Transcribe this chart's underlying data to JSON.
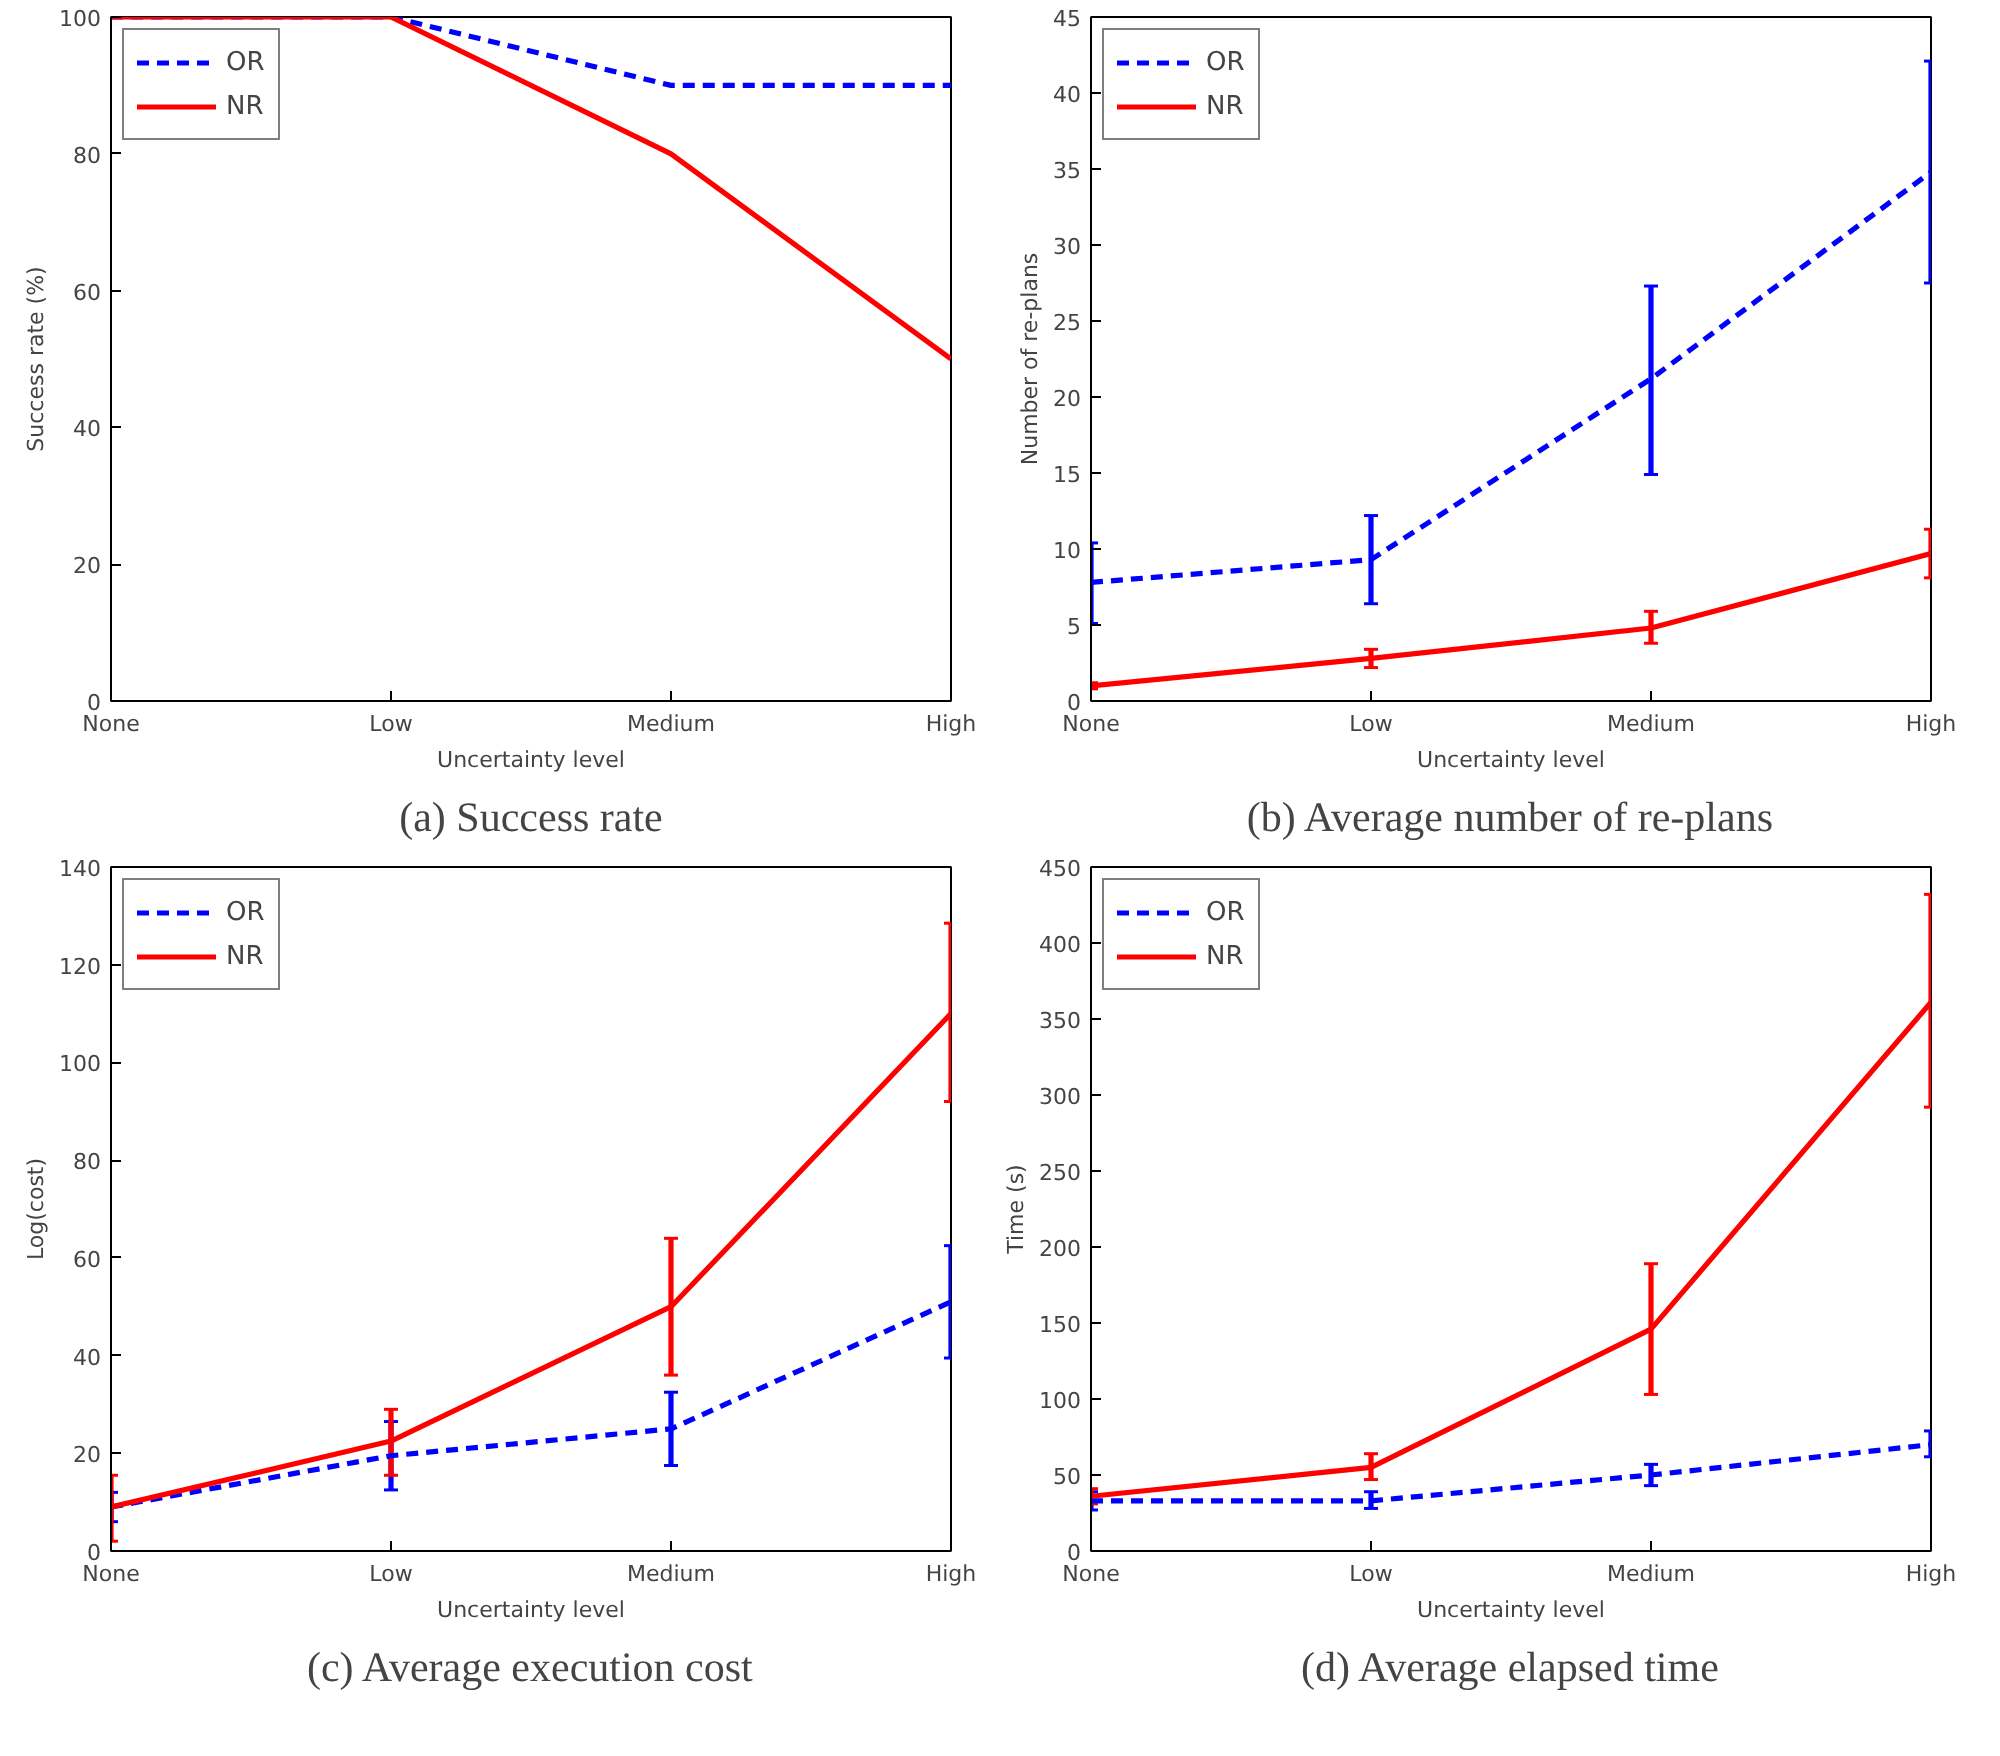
{
  "chart_data": [
    {
      "type": "line",
      "title": "(a) Success rate",
      "xlabel": "Uncertainty level",
      "ylabel": "Success rate (%)",
      "categories": [
        "None",
        "Low",
        "Medium",
        "High"
      ],
      "ylim": [
        0,
        100
      ],
      "yticks": [
        0,
        20,
        40,
        60,
        80,
        100
      ],
      "grid": false,
      "legend": "top left",
      "marker": "none",
      "series": [
        {
          "name": "OR",
          "color": "#0000ff",
          "line_style": "dashed",
          "values": [
            100,
            100,
            90,
            90
          ]
        },
        {
          "name": "NR",
          "color": "#ff0000",
          "line_style": "solid",
          "values": [
            100,
            100,
            80,
            50
          ]
        }
      ]
    },
    {
      "type": "line",
      "title": "(b) Average number of re-plans",
      "xlabel": "Uncertainty level",
      "ylabel": "Number of re-plans",
      "categories": [
        "None",
        "Low",
        "Medium",
        "High"
      ],
      "ylim": [
        0,
        45
      ],
      "yticks": [
        0,
        5,
        10,
        15,
        20,
        25,
        30,
        35,
        40,
        45
      ],
      "grid": false,
      "legend": "top left",
      "marker": "none",
      "series": [
        {
          "name": "OR",
          "color": "#0000ff",
          "line_style": "dashed",
          "values": [
            7.8,
            9.3,
            21.2,
            34.8
          ],
          "errors": [
            [
              5.1,
              10.4
            ],
            [
              6.4,
              12.2
            ],
            [
              14.9,
              27.3
            ],
            [
              27.5,
              42.1
            ]
          ]
        },
        {
          "name": "NR",
          "color": "#ff0000",
          "line_style": "solid",
          "values": [
            1.0,
            2.8,
            4.8,
            9.7
          ],
          "errors": [
            [
              0.8,
              1.2
            ],
            [
              2.2,
              3.4
            ],
            [
              3.8,
              5.9
            ],
            [
              8.1,
              11.3
            ]
          ]
        }
      ]
    },
    {
      "type": "line",
      "title": "(c) Average execution cost",
      "xlabel": "Uncertainty level",
      "ylabel": "Log(cost)",
      "categories": [
        "None",
        "Low",
        "Medium",
        "High"
      ],
      "ylim": [
        0,
        140
      ],
      "yticks": [
        0,
        20,
        40,
        60,
        80,
        100,
        120,
        140
      ],
      "grid": false,
      "legend": "top left",
      "marker": "none",
      "series": [
        {
          "name": "OR",
          "color": "#0000ff",
          "line_style": "dashed",
          "values": [
            9,
            19.5,
            25,
            51
          ],
          "errors": [
            [
              6,
              12
            ],
            [
              12.5,
              26.5
            ],
            [
              17.5,
              32.5
            ],
            [
              39.5,
              62.5
            ]
          ]
        },
        {
          "name": "NR",
          "color": "#ff0000",
          "line_style": "solid",
          "values": [
            9,
            22.5,
            50,
            110
          ],
          "errors": [
            [
              2,
              15.5
            ],
            [
              15.5,
              29
            ],
            [
              36,
              64
            ],
            [
              92,
              128.5
            ]
          ]
        }
      ]
    },
    {
      "type": "line",
      "title": "(d) Average elapsed time",
      "xlabel": "Uncertainty level",
      "ylabel": "Time (s)",
      "categories": [
        "None",
        "Low",
        "Medium",
        "High"
      ],
      "ylim": [
        0,
        450
      ],
      "yticks": [
        0,
        50,
        100,
        150,
        200,
        250,
        300,
        350,
        400,
        450
      ],
      "grid": false,
      "legend": "top left",
      "marker": "none",
      "series": [
        {
          "name": "OR",
          "color": "#0000ff",
          "line_style": "dashed",
          "values": [
            33,
            33,
            50,
            70
          ],
          "errors": [
            [
              27,
              39
            ],
            [
              28,
              39
            ],
            [
              43,
              57
            ],
            [
              62,
              79
            ]
          ]
        },
        {
          "name": "NR",
          "color": "#ff0000",
          "line_style": "solid",
          "values": [
            36,
            55,
            146,
            361
          ],
          "errors": [
            [
              31,
              41
            ],
            [
              47,
              64
            ],
            [
              103,
              189
            ],
            [
              292,
              432
            ]
          ]
        }
      ]
    }
  ]
}
